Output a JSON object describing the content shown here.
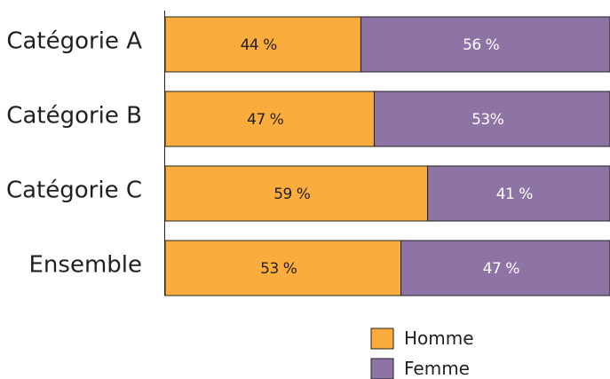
{
  "chart_data": {
    "type": "bar",
    "orientation": "horizontal",
    "stacked": true,
    "percent_stacked": true,
    "categories": [
      "Catégorie A",
      "Catégorie B",
      "Catégorie C",
      "Ensemble"
    ],
    "series": [
      {
        "name": "Homme",
        "color": "#faad3c",
        "values": [
          44,
          47,
          59,
          53
        ],
        "labels": [
          "44 %",
          "47 %",
          "59 %",
          "53 %"
        ],
        "label_color": "#231f20"
      },
      {
        "name": "Femme",
        "color": "#8d74a4",
        "values": [
          56,
          53,
          41,
          47
        ],
        "labels": [
          "56 %",
          "53%",
          "41 %",
          "47 %"
        ],
        "label_color": "#ffffff"
      }
    ],
    "xlim": [
      0,
      100
    ],
    "grid": false,
    "legend": "bottom-right"
  }
}
